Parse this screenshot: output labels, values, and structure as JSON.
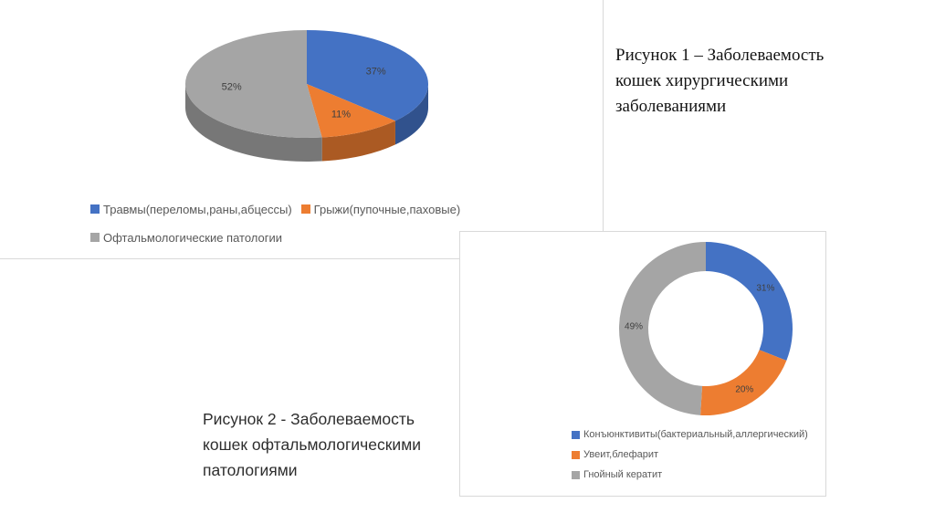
{
  "figures": {
    "figure1": {
      "caption_lines": [
        "Рисунок 1 – Заболеваемость",
        "кошек хирургическими",
        "заболеваниями"
      ]
    },
    "figure2": {
      "caption_lines": [
        "Рисунок 2 - Заболеваемость",
        "кошек офтальмологическими",
        "патологиями"
      ]
    }
  },
  "chart_data": [
    {
      "type": "pie",
      "variant": "3d-pie",
      "categories": [
        "Травмы(переломы,раны,абцессы)",
        "Грыжи(пупочные,паховые)",
        "Офтальмологические патологии"
      ],
      "values": [
        37,
        11,
        52
      ],
      "data_labels": [
        "37%",
        "11%",
        "52%"
      ],
      "colors": [
        "#4472c4",
        "#ed7d31",
        "#a5a5a5"
      ],
      "legend_position": "bottom",
      "legend_text_color": "#595959"
    },
    {
      "type": "pie",
      "variant": "donut",
      "categories": [
        "Конъюнктивиты(бактериальный,аллергический)",
        "Увеит,блефарит",
        "Гнойный кератит"
      ],
      "values": [
        31,
        20,
        49
      ],
      "data_labels": [
        "31%",
        "20%",
        "49%"
      ],
      "colors": [
        "#4472c4",
        "#ed7d31",
        "#a5a5a5"
      ],
      "legend_position": "bottom",
      "legend_text_color": "#595959"
    }
  ]
}
